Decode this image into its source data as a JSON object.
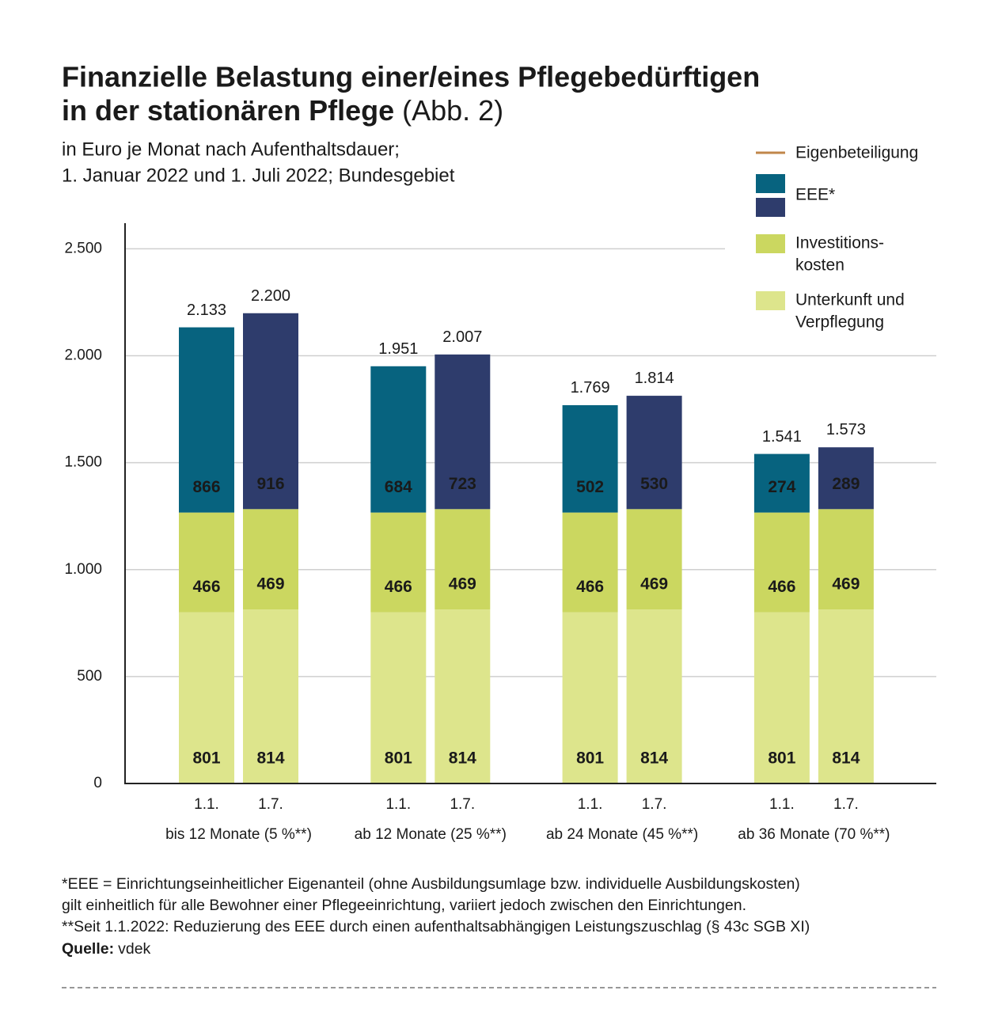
{
  "chart_data": {
    "type": "stacked_bar",
    "title": [
      "Finanzielle Belastung einer/eines Pflegebedürftigen",
      "in der stationären Pflege"
    ],
    "title_note": "(Abb. 2)",
    "subtitle": [
      "in Euro je Monat nach Aufenthaltsdauer;",
      "1. Januar 2022 und 1. Juli 2022; Bundesgebiet"
    ],
    "categories": [
      "1.1.",
      "1.7.",
      "1.1.",
      "1.7.",
      "1.1.",
      "1.7.",
      "1.1.",
      "1.7."
    ],
    "groups": [
      "bis 12 Monate (5 %**)",
      "ab 12 Monate (25 %**)",
      "ab 24 Monate (45 %**)",
      "ab 36 Monate (70 %**)"
    ],
    "series": [
      {
        "name": [
          "Unterkunft und",
          "Verpflegung"
        ],
        "colors": [
          "#dde58c"
        ],
        "label_color": "#1a1a1a",
        "values": [
          801,
          814,
          801,
          814,
          801,
          814,
          801,
          814
        ]
      },
      {
        "name": [
          "Investitions-",
          "kosten"
        ],
        "colors": [
          "#cbd760"
        ],
        "label_color": "#1a1a1a",
        "values": [
          466,
          469,
          466,
          469,
          466,
          469,
          466,
          469
        ]
      },
      {
        "name": [
          "EEE*"
        ],
        "colors": [
          "#07637f",
          "#2e3c6c"
        ],
        "label_color": "#ffffff",
        "values": [
          866,
          916,
          684,
          723,
          502,
          530,
          274,
          289
        ]
      }
    ],
    "total": {
      "name": "Eigenbeteiligung",
      "color": "#c0864a",
      "values": [
        2133,
        2200,
        1951,
        2007,
        1769,
        1814,
        1541,
        1573
      ],
      "value_labels": [
        "2.133",
        "2.200",
        "1.951",
        "2.007",
        "1.769",
        "1.814",
        "1.541",
        "1.573"
      ]
    },
    "ylim": [
      0,
      2620
    ],
    "yticks": [
      0,
      500,
      {
        "value": 1000,
        "label": "1.000"
      },
      {
        "value": 1500,
        "label": "1.500"
      },
      {
        "value": 2000,
        "label": "2.000"
      },
      {
        "value": 2500,
        "label": "2.500"
      }
    ],
    "grid": true,
    "legend": "top-right",
    "footnotes": [
      "*EEE = Einrichtungseinheitlicher Eigenanteil (ohne Ausbildungsumlage bzw. individuelle Ausbildungskosten)",
      "gilt einheitlich für alle Bewohner einer Pflegeeinrichtung, variiert jedoch zwischen den Einrichtungen.",
      "**Seit 1.1.2022: Reduzierung des EEE durch einen aufenthaltsabhängigen Leistungszuschlag (§ 43c SGB XI)"
    ],
    "source_label": "Quelle:",
    "source": "vdek"
  }
}
